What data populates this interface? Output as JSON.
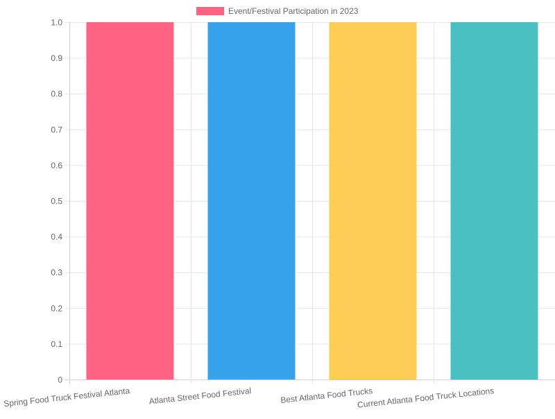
{
  "chart_data": {
    "type": "bar",
    "title": "",
    "xlabel": "",
    "ylabel": "",
    "categories": [
      "Spring Food Truck Festival Atlanta",
      "Atlanta Street Food Festival",
      "Best Atlanta Food Trucks",
      "Current Atlanta Food Truck Locations"
    ],
    "series": [
      {
        "name": "Event/Festival Participation in 2023",
        "values": [
          1,
          1,
          1,
          1
        ]
      }
    ],
    "bar_colors": [
      "#ff6384",
      "#36a2eb",
      "#ffcd56",
      "#4bc0c0"
    ],
    "ylim": [
      0,
      1
    ],
    "yticks": [
      "0",
      "0.1",
      "0.2",
      "0.3",
      "0.4",
      "0.5",
      "0.6",
      "0.7",
      "0.8",
      "0.9",
      "1.0"
    ],
    "grid": true,
    "legend_position": "top-center",
    "legend_swatch_color": "#ff6384"
  }
}
